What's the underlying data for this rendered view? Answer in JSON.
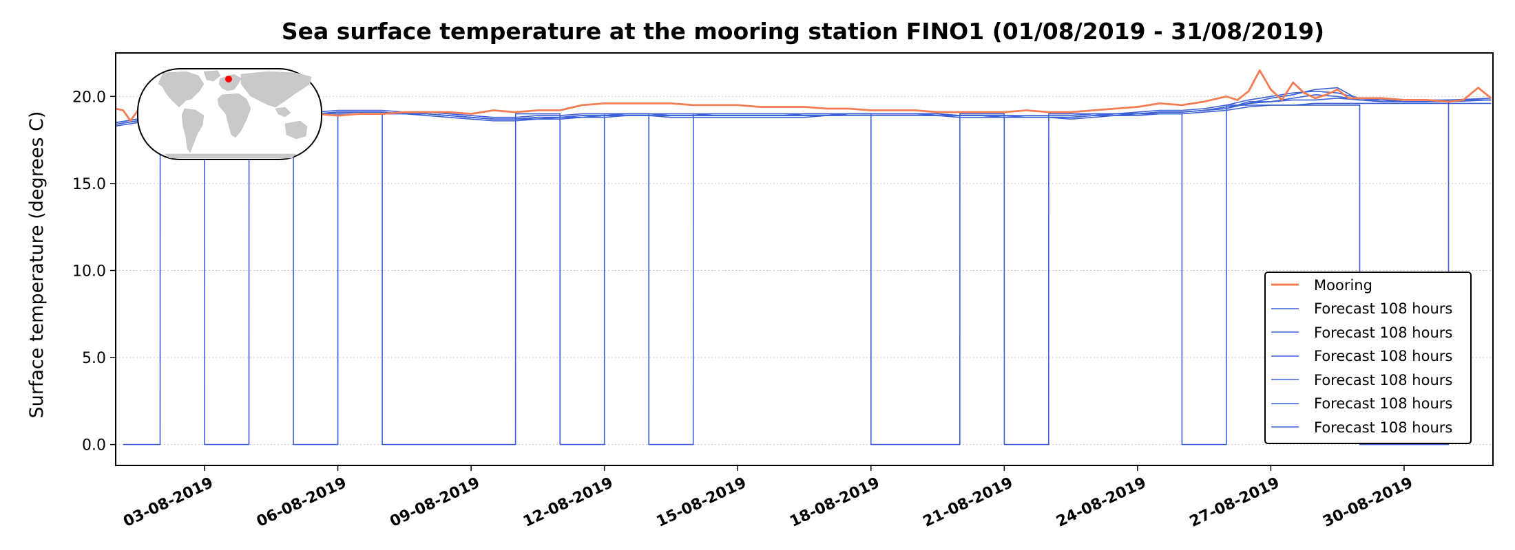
{
  "chart_data": {
    "type": "line",
    "title": "Sea surface temperature at the mooring station FINO1 (01/08/2019 - 31/08/2019)",
    "xlabel": "",
    "ylabel": "Surface temperature (degrees C)",
    "xlim": [
      "01-08-2019",
      "01-09-2019"
    ],
    "ylim": [
      -1.2,
      22.5
    ],
    "yticks": [
      0.0,
      5.0,
      10.0,
      15.0,
      20.0
    ],
    "ytick_labels": [
      "0.0",
      "5.0",
      "10.0",
      "15.0",
      "20.0"
    ],
    "xtick_labels": [
      "03-08-2019",
      "06-08-2019",
      "09-08-2019",
      "12-08-2019",
      "15-08-2019",
      "18-08-2019",
      "21-08-2019",
      "24-08-2019",
      "27-08-2019",
      "30-08-2019"
    ],
    "grid": "horizontal dotted",
    "legend_position": "lower-right",
    "inset": "world map with station location marker",
    "colors": {
      "mooring": "#f47c52",
      "forecast": "#3a5fd6",
      "marker": "#ff0000"
    },
    "series": [
      {
        "name": "Mooring",
        "x": [
          "01-08 00:00",
          "01-08 04:00",
          "01-08 08:00",
          "01-08 12:00",
          "01-08 16:00",
          "01-08 20:00",
          "02-08 00:00",
          "02-08 12:00",
          "03-08 00:00",
          "03-08 12:00",
          "04-08 00:00",
          "04-08 12:00",
          "05-08 00:00",
          "05-08 12:00",
          "06-08 00:00",
          "06-08 12:00",
          "07-08 00:00",
          "07-08 12:00",
          "08-08 00:00",
          "08-08 12:00",
          "09-08 00:00",
          "09-08 12:00",
          "10-08 00:00",
          "10-08 12:00",
          "11-08 00:00",
          "11-08 12:00",
          "12-08 00:00",
          "12-08 12:00",
          "13-08 00:00",
          "13-08 12:00",
          "14-08 00:00",
          "14-08 12:00",
          "15-08 00:00",
          "15-08 12:00",
          "16-08 00:00",
          "16-08 12:00",
          "17-08 00:00",
          "17-08 12:00",
          "18-08 00:00",
          "18-08 12:00",
          "19-08 00:00",
          "19-08 12:00",
          "20-08 00:00",
          "20-08 12:00",
          "21-08 00:00",
          "21-08 12:00",
          "22-08 00:00",
          "22-08 12:00",
          "23-08 00:00",
          "23-08 12:00",
          "24-08 00:00",
          "24-08 12:00",
          "25-08 00:00",
          "25-08 12:00",
          "26-08 00:00",
          "26-08 06:00",
          "26-08 12:00",
          "26-08 18:00",
          "27-08 00:00",
          "27-08 06:00",
          "27-08 12:00",
          "27-08 18:00",
          "28-08 00:00",
          "28-08 06:00",
          "28-08 12:00",
          "28-08 18:00",
          "29-08 00:00",
          "29-08 12:00",
          "30-08 00:00",
          "30-08 12:00",
          "31-08 00:00",
          "31-08 08:00",
          "31-08 16:00",
          "31-08 23:00"
        ],
        "values": [
          19.3,
          19.2,
          18.6,
          19.2,
          18.7,
          19.0,
          19.0,
          19.3,
          19.0,
          18.9,
          19.0,
          18.8,
          18.9,
          19.0,
          18.9,
          19.0,
          19.0,
          19.1,
          19.1,
          19.1,
          19.0,
          19.2,
          19.1,
          19.2,
          19.2,
          19.5,
          19.6,
          19.6,
          19.6,
          19.6,
          19.5,
          19.5,
          19.5,
          19.4,
          19.4,
          19.4,
          19.3,
          19.3,
          19.2,
          19.2,
          19.2,
          19.1,
          19.1,
          19.1,
          19.1,
          19.2,
          19.1,
          19.1,
          19.2,
          19.3,
          19.4,
          19.6,
          19.5,
          19.7,
          20.0,
          19.8,
          20.3,
          21.5,
          20.4,
          19.8,
          20.8,
          20.2,
          19.9,
          20.1,
          20.4,
          19.9,
          19.9,
          19.9,
          19.8,
          19.8,
          19.7,
          19.8,
          20.5,
          19.9
        ]
      },
      {
        "name": "Forecast 108 hours",
        "x": [
          "01-08 00:00",
          "01-08 12:00",
          "02-08 00:00",
          "02-08 12:00",
          "03-08 00:00",
          "03-08 12:00",
          "04-08 00:00",
          "04-08 12:00",
          "05-08 00:00",
          "05-08 12:00",
          "06-08 00:00",
          "06-08 12:00",
          "07-08 00:00",
          "07-08 12:00",
          "08-08 00:00",
          "08-08 12:00",
          "09-08 00:00",
          "09-08 12:00",
          "10-08 00:00",
          "10-08 12:00",
          "11-08 00:00",
          "11-08 12:00",
          "12-08 00:00",
          "12-08 12:00",
          "13-08 00:00",
          "13-08 12:00",
          "14-08 00:00",
          "14-08 12:00",
          "15-08 00:00",
          "15-08 12:00",
          "16-08 00:00",
          "16-08 12:00",
          "17-08 00:00",
          "17-08 12:00",
          "18-08 00:00",
          "18-08 12:00",
          "19-08 00:00",
          "19-08 12:00",
          "20-08 00:00",
          "20-08 12:00",
          "21-08 00:00",
          "21-08 12:00",
          "22-08 00:00",
          "22-08 12:00",
          "23-08 00:00",
          "23-08 12:00",
          "24-08 00:00",
          "24-08 12:00",
          "25-08 00:00",
          "25-08 12:00",
          "26-08 00:00",
          "26-08 12:00",
          "27-08 00:00",
          "27-08 12:00",
          "28-08 00:00",
          "28-08 12:00",
          "29-08 00:00",
          "29-08 12:00",
          "30-08 00:00",
          "30-08 12:00",
          "31-08 00:00",
          "31-08 23:00"
        ],
        "values": [
          18.4,
          18.6,
          18.9,
          19.0,
          19.0,
          18.9,
          19.0,
          18.9,
          18.9,
          19.0,
          19.1,
          19.1,
          19.1,
          19.0,
          19.0,
          18.9,
          18.8,
          18.7,
          18.7,
          18.7,
          18.8,
          18.8,
          18.9,
          18.9,
          18.9,
          18.9,
          18.9,
          18.9,
          18.9,
          18.9,
          18.9,
          18.9,
          18.9,
          19.0,
          19.0,
          19.0,
          19.0,
          19.0,
          18.9,
          18.9,
          18.8,
          18.8,
          18.8,
          18.8,
          18.9,
          18.9,
          19.0,
          19.1,
          19.1,
          19.2,
          19.4,
          19.6,
          19.7,
          19.8,
          19.8,
          19.9,
          19.8,
          19.7,
          19.7,
          19.7,
          19.7,
          19.8
        ]
      },
      {
        "name": "Forecast 108 hours",
        "x": [
          "01-08 00:00",
          "01-08 12:00",
          "02-08 00:00",
          "02-08 12:00",
          "03-08 00:00",
          "03-08 12:00",
          "04-08 00:00",
          "04-08 12:00",
          "05-08 00:00",
          "05-08 12:00",
          "06-08 00:00",
          "06-08 12:00",
          "07-08 00:00",
          "07-08 12:00",
          "08-08 00:00",
          "08-08 12:00",
          "09-08 00:00",
          "09-08 12:00",
          "10-08 00:00",
          "10-08 12:00",
          "11-08 00:00",
          "11-08 12:00",
          "12-08 00:00",
          "12-08 12:00",
          "13-08 00:00",
          "13-08 12:00",
          "14-08 00:00",
          "14-08 12:00",
          "15-08 00:00",
          "15-08 12:00",
          "16-08 00:00",
          "16-08 12:00",
          "17-08 00:00",
          "17-08 12:00",
          "18-08 00:00",
          "18-08 12:00",
          "19-08 00:00",
          "19-08 12:00",
          "20-08 00:00",
          "20-08 12:00",
          "21-08 00:00",
          "21-08 12:00",
          "22-08 00:00",
          "22-08 12:00",
          "23-08 00:00",
          "23-08 12:00",
          "24-08 00:00",
          "24-08 12:00",
          "25-08 00:00",
          "25-08 12:00",
          "26-08 00:00",
          "26-08 12:00",
          "27-08 00:00",
          "27-08 12:00",
          "28-08 00:00",
          "28-08 12:00",
          "29-08 00:00",
          "29-08 12:00",
          "30-08 00:00",
          "30-08 12:00",
          "31-08 00:00",
          "31-08 23:00"
        ],
        "values": [
          18.5,
          18.7,
          19.0,
          19.1,
          19.0,
          19.0,
          19.1,
          19.0,
          18.9,
          19.1,
          19.2,
          19.2,
          19.2,
          19.1,
          19.1,
          19.0,
          18.9,
          18.8,
          18.8,
          18.9,
          18.9,
          19.0,
          19.0,
          19.0,
          19.0,
          19.0,
          19.0,
          18.9,
          18.9,
          18.9,
          18.9,
          19.0,
          19.0,
          19.0,
          19.0,
          19.0,
          19.0,
          19.0,
          18.9,
          18.9,
          18.9,
          18.9,
          18.9,
          18.9,
          19.0,
          19.0,
          19.1,
          19.2,
          19.2,
          19.3,
          19.5,
          19.8,
          20.0,
          20.2,
          20.3,
          20.2,
          19.9,
          19.8,
          19.8,
          19.8,
          19.8,
          19.9
        ]
      },
      {
        "name": "Forecast 108 hours",
        "x": [
          "01-08 00:00",
          "01-08 12:00",
          "02-08 00:00",
          "02-08 12:00",
          "03-08 00:00",
          "03-08 12:00",
          "04-08 00:00",
          "04-08 12:00",
          "05-08 00:00",
          "05-08 12:00",
          "06-08 00:00",
          "06-08 12:00",
          "07-08 00:00",
          "07-08 12:00",
          "08-08 00:00",
          "08-08 12:00",
          "09-08 00:00",
          "09-08 12:00",
          "10-08 00:00",
          "10-08 12:00",
          "11-08 00:00",
          "11-08 12:00",
          "12-08 00:00",
          "12-08 12:00",
          "13-08 00:00",
          "13-08 12:00",
          "14-08 00:00",
          "14-08 12:00",
          "15-08 00:00",
          "15-08 12:00",
          "16-08 00:00",
          "16-08 12:00",
          "17-08 00:00",
          "17-08 12:00",
          "18-08 00:00",
          "18-08 12:00",
          "19-08 00:00",
          "19-08 12:00",
          "20-08 00:00",
          "20-08 12:00",
          "21-08 00:00",
          "21-08 12:00",
          "22-08 00:00",
          "22-08 12:00",
          "23-08 00:00",
          "23-08 12:00",
          "24-08 00:00",
          "24-08 12:00",
          "25-08 00:00",
          "25-08 12:00",
          "26-08 00:00",
          "26-08 12:00",
          "27-08 00:00",
          "27-08 12:00",
          "28-08 00:00",
          "28-08 12:00",
          "29-08 00:00",
          "29-08 12:00",
          "30-08 00:00",
          "30-08 12:00",
          "31-08 00:00",
          "31-08 23:00"
        ],
        "values": [
          18.3,
          18.5,
          18.8,
          18.9,
          18.9,
          18.8,
          18.9,
          18.9,
          18.8,
          19.0,
          19.0,
          19.0,
          19.0,
          19.0,
          18.9,
          18.8,
          18.7,
          18.6,
          18.6,
          18.7,
          18.7,
          18.8,
          18.8,
          18.9,
          18.9,
          18.8,
          18.8,
          18.8,
          18.8,
          18.8,
          18.8,
          18.8,
          18.9,
          18.9,
          18.9,
          18.9,
          18.9,
          18.9,
          18.8,
          18.8,
          18.8,
          18.8,
          18.8,
          18.7,
          18.8,
          18.9,
          18.9,
          19.0,
          19.0,
          19.1,
          19.2,
          19.4,
          19.5,
          19.5,
          19.6,
          19.6,
          19.6,
          19.6,
          19.6,
          19.6,
          19.6,
          19.6
        ]
      },
      {
        "name": "Forecast 108 hours",
        "x": [
          "01-08 00:00",
          "01-08 12:00",
          "02-08 00:00",
          "02-08 12:00",
          "03-08 00:00",
          "03-08 12:00",
          "04-08 00:00",
          "04-08 12:00",
          "05-08 00:00",
          "05-08 12:00",
          "06-08 00:00",
          "06-08 12:00",
          "07-08 00:00",
          "07-08 12:00",
          "08-08 00:00",
          "08-08 12:00",
          "09-08 00:00",
          "09-08 12:00",
          "10-08 00:00",
          "10-08 12:00",
          "11-08 00:00",
          "11-08 12:00",
          "12-08 00:00",
          "12-08 12:00",
          "13-08 00:00",
          "13-08 12:00",
          "14-08 00:00",
          "14-08 12:00",
          "15-08 00:00",
          "15-08 12:00",
          "16-08 00:00",
          "16-08 12:00",
          "17-08 00:00",
          "17-08 12:00",
          "18-08 00:00",
          "18-08 12:00",
          "19-08 00:00",
          "19-08 12:00",
          "20-08 00:00",
          "20-08 12:00",
          "21-08 00:00",
          "21-08 12:00",
          "22-08 00:00",
          "22-08 12:00",
          "23-08 00:00",
          "23-08 12:00",
          "24-08 00:00",
          "24-08 12:00",
          "25-08 00:00",
          "25-08 12:00",
          "26-08 00:00",
          "26-08 12:00",
          "27-08 00:00",
          "27-08 12:00",
          "28-08 00:00",
          "28-08 12:00",
          "29-08 00:00",
          "29-08 12:00",
          "30-08 00:00",
          "30-08 12:00",
          "31-08 00:00",
          "31-08 23:00"
        ],
        "values": [
          18.4,
          18.6,
          18.9,
          19.0,
          19.0,
          18.9,
          19.0,
          19.0,
          18.9,
          19.0,
          19.1,
          19.1,
          19.1,
          19.0,
          19.0,
          18.9,
          18.8,
          18.7,
          18.7,
          18.8,
          18.8,
          18.9,
          18.9,
          18.9,
          18.9,
          18.9,
          18.9,
          18.9,
          18.9,
          18.9,
          18.9,
          18.9,
          18.9,
          19.0,
          19.0,
          19.0,
          19.0,
          18.9,
          18.9,
          18.9,
          18.8,
          18.8,
          18.8,
          18.8,
          18.9,
          19.0,
          19.0,
          19.1,
          19.1,
          19.2,
          19.3,
          19.6,
          19.9,
          20.1,
          20.4,
          20.5,
          19.8,
          19.8,
          19.7,
          19.7,
          19.8,
          19.8
        ]
      },
      {
        "name": "Forecast 108 hours",
        "x": [
          "01-08 00:00",
          "01-08 12:00",
          "02-08 00:00",
          "02-08 12:00",
          "03-08 00:00",
          "03-08 12:00",
          "04-08 00:00",
          "04-08 12:00",
          "05-08 00:00",
          "05-08 12:00",
          "06-08 00:00",
          "06-08 12:00",
          "07-08 00:00",
          "07-08 12:00",
          "08-08 00:00",
          "08-08 12:00",
          "09-08 00:00",
          "09-08 12:00",
          "10-08 00:00",
          "10-08 12:00",
          "11-08 00:00",
          "11-08 12:00",
          "12-08 00:00",
          "12-08 12:00",
          "13-08 00:00",
          "13-08 12:00",
          "14-08 00:00",
          "14-08 12:00",
          "15-08 00:00",
          "15-08 12:00",
          "16-08 00:00",
          "16-08 12:00",
          "17-08 00:00",
          "17-08 12:00",
          "18-08 00:00",
          "18-08 12:00",
          "19-08 00:00",
          "19-08 12:00",
          "20-08 00:00",
          "20-08 12:00",
          "21-08 00:00",
          "21-08 12:00",
          "22-08 00:00",
          "22-08 12:00",
          "23-08 00:00",
          "23-08 12:00",
          "24-08 00:00",
          "24-08 12:00",
          "25-08 00:00",
          "25-08 12:00",
          "26-08 00:00",
          "26-08 12:00",
          "27-08 00:00",
          "27-08 12:00",
          "28-08 00:00",
          "28-08 12:00",
          "29-08 00:00",
          "29-08 12:00",
          "30-08 00:00",
          "30-08 12:00",
          "31-08 00:00",
          "31-08 23:00"
        ],
        "values": [
          18.5,
          18.7,
          18.9,
          19.0,
          19.0,
          18.9,
          19.0,
          19.0,
          18.9,
          19.0,
          19.1,
          19.1,
          19.1,
          19.0,
          19.0,
          18.9,
          18.8,
          18.7,
          18.7,
          18.8,
          18.8,
          18.9,
          18.9,
          19.0,
          19.0,
          18.9,
          18.9,
          18.9,
          18.9,
          18.9,
          18.9,
          18.9,
          18.9,
          19.0,
          19.0,
          19.0,
          19.0,
          19.0,
          18.9,
          18.9,
          18.9,
          18.8,
          18.8,
          18.8,
          18.9,
          19.0,
          19.0,
          19.1,
          19.1,
          19.2,
          19.3,
          19.7,
          19.7,
          19.9,
          20.1,
          20.0,
          19.8,
          19.8,
          19.7,
          19.7,
          19.8,
          19.8
        ]
      },
      {
        "name": "Forecast 108 hours",
        "x": [
          "01-08 04:00",
          "01-08 04:01",
          "02-08 00:00",
          "02-08 00:01",
          "03-08 00:00",
          "03-08 00:01",
          "04-08 00:00",
          "04-08 00:01",
          "05-08 00:00",
          "05-08 00:01",
          "06-08 00:00",
          "06-08 00:01",
          "07-08 00:00",
          "07-08 00:01",
          "10-08 00:00",
          "10-08 00:01",
          "11-08 00:00",
          "11-08 00:01",
          "12-08 00:00",
          "12-08 00:01",
          "13-08 00:00",
          "13-08 00:01",
          "14-08 00:00",
          "14-08 00:01",
          "18-08 00:00",
          "18-08 00:01",
          "20-08 00:00",
          "20-08 00:01",
          "21-08 00:00",
          "21-08 00:01",
          "22-08 00:00",
          "22-08 00:01",
          "25-08 00:00",
          "25-08 00:01",
          "26-08 00:00",
          "26-08 00:01",
          "29-08 00:00",
          "29-08 00:01",
          "31-08 00:00",
          "31-08 00:01"
        ],
        "values": [
          0,
          0,
          0,
          19.0,
          19.0,
          0,
          0,
          19.0,
          19.0,
          0,
          0,
          19.0,
          19.0,
          0,
          0,
          19.0,
          19.0,
          0,
          0,
          19.0,
          19.0,
          0,
          0,
          19.0,
          19.0,
          0,
          0,
          19.0,
          19.0,
          0,
          0,
          19.0,
          19.0,
          0,
          0,
          19.5,
          19.5,
          0,
          0,
          19.8
        ]
      }
    ]
  },
  "legend": {
    "items": [
      {
        "label": "Mooring"
      },
      {
        "label": "Forecast 108 hours"
      },
      {
        "label": "Forecast 108 hours"
      },
      {
        "label": "Forecast 108 hours"
      },
      {
        "label": "Forecast 108 hours"
      },
      {
        "label": "Forecast 108 hours"
      },
      {
        "label": "Forecast 108 hours"
      }
    ]
  }
}
